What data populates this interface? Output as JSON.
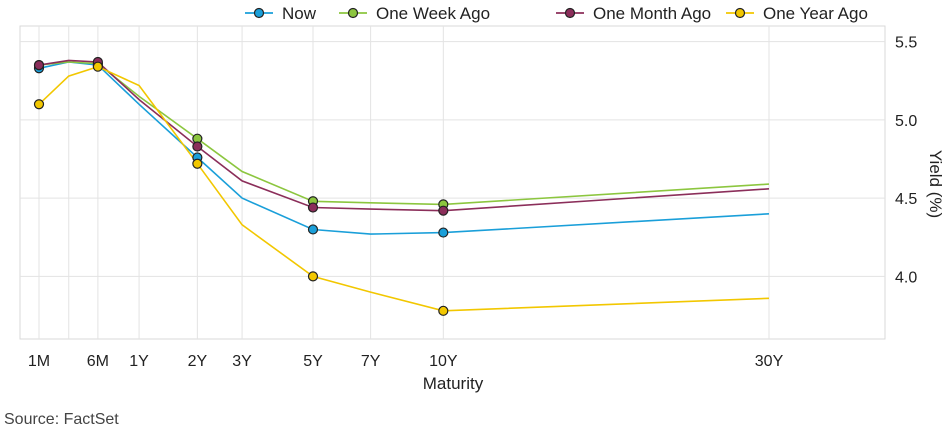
{
  "chart_data": {
    "type": "line",
    "xlabel": "Maturity",
    "ylabel": "Yield (%)",
    "ylim": [
      3.6,
      5.6
    ],
    "yticks": [
      4.0,
      4.5,
      5.0,
      5.5
    ],
    "ytick_labels": [
      "4.0",
      "4.5",
      "5.0",
      "5.5"
    ],
    "grid": true,
    "legend_position": "top",
    "x_months": [
      1,
      3,
      6,
      12,
      24,
      36,
      60,
      84,
      120,
      360
    ],
    "x_tick_labels": [
      {
        "m": 1,
        "label": "1M"
      },
      {
        "m": 3,
        "label": ""
      },
      {
        "m": 6,
        "label": "6M"
      },
      {
        "m": 12,
        "label": "1Y"
      },
      {
        "m": 24,
        "label": "2Y"
      },
      {
        "m": 36,
        "label": "3Y"
      },
      {
        "m": 60,
        "label": "5Y"
      },
      {
        "m": 84,
        "label": "7Y"
      },
      {
        "m": 120,
        "label": "10Y"
      },
      {
        "m": 360,
        "label": "30Y"
      }
    ],
    "marker_months": [
      1,
      6,
      24,
      60,
      120
    ],
    "series": [
      {
        "name": "Now",
        "color": "#1a9fd9",
        "values": [
          5.33,
          5.37,
          5.35,
          5.1,
          4.76,
          4.5,
          4.3,
          4.27,
          4.28,
          4.4
        ]
      },
      {
        "name": "One Week Ago",
        "color": "#8cc63f",
        "values": [
          5.35,
          5.37,
          5.36,
          5.15,
          4.88,
          4.67,
          4.48,
          4.47,
          4.46,
          4.59
        ]
      },
      {
        "name": "One Month Ago",
        "color": "#8b2e5a",
        "values": [
          5.35,
          5.38,
          5.37,
          5.13,
          4.83,
          4.61,
          4.44,
          4.43,
          4.42,
          4.56
        ]
      },
      {
        "name": "One Year Ago",
        "color": "#f2c700",
        "values": [
          5.1,
          5.28,
          5.34,
          5.22,
          4.72,
          4.33,
          4.0,
          3.9,
          3.78,
          3.86
        ]
      }
    ]
  },
  "source": "Source: FactSet"
}
